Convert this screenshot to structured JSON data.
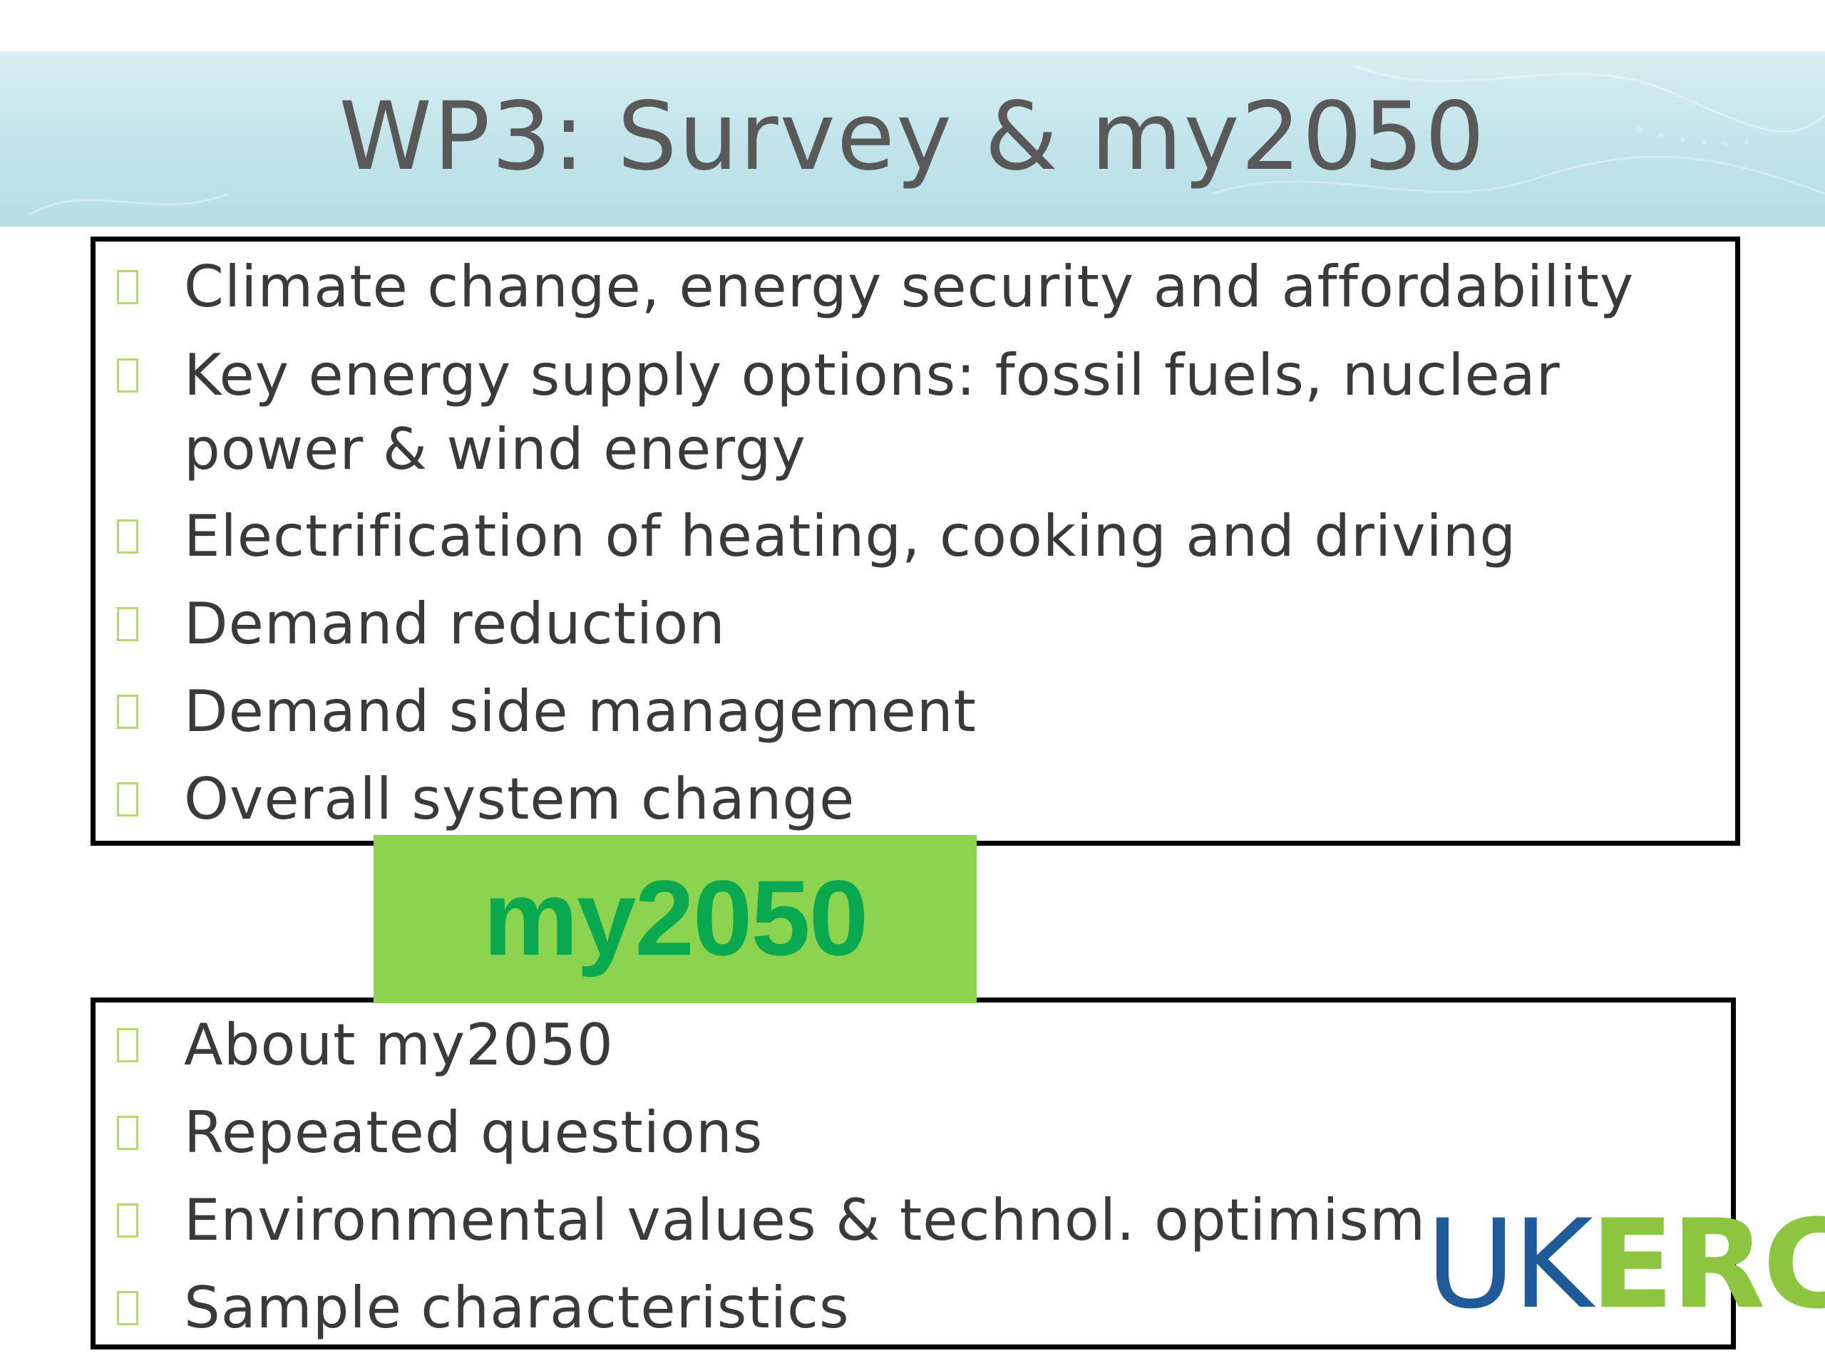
{
  "slide": {
    "title": "WP3: Survey & my2050"
  },
  "top_list": {
    "items": [
      "Climate change, energy security and affordability",
      "Key energy supply options: fossil fuels, nuclear power & wind energy",
      "Electrification of heating, cooking and driving",
      "Demand reduction",
      "Demand side management",
      "Overall system change"
    ]
  },
  "banner": {
    "label": "my2050"
  },
  "bottom_list": {
    "items": [
      "About my2050",
      "Repeated questions",
      "Environmental values & technol. optimism",
      "Sample characteristics"
    ]
  },
  "logo": {
    "part1": "UK",
    "part2": "ERC"
  },
  "colors": {
    "title_band": "#bfe3e9",
    "title_text": "#595959",
    "bullet_outline": "#b5d96a",
    "banner_bg": "#8cd44f",
    "banner_text": "#0aa84f",
    "logo_uk": "#1f5a99",
    "logo_erc": "#8cc63f"
  },
  "icons": {
    "bullet": "empty-square-bullet-icon"
  }
}
